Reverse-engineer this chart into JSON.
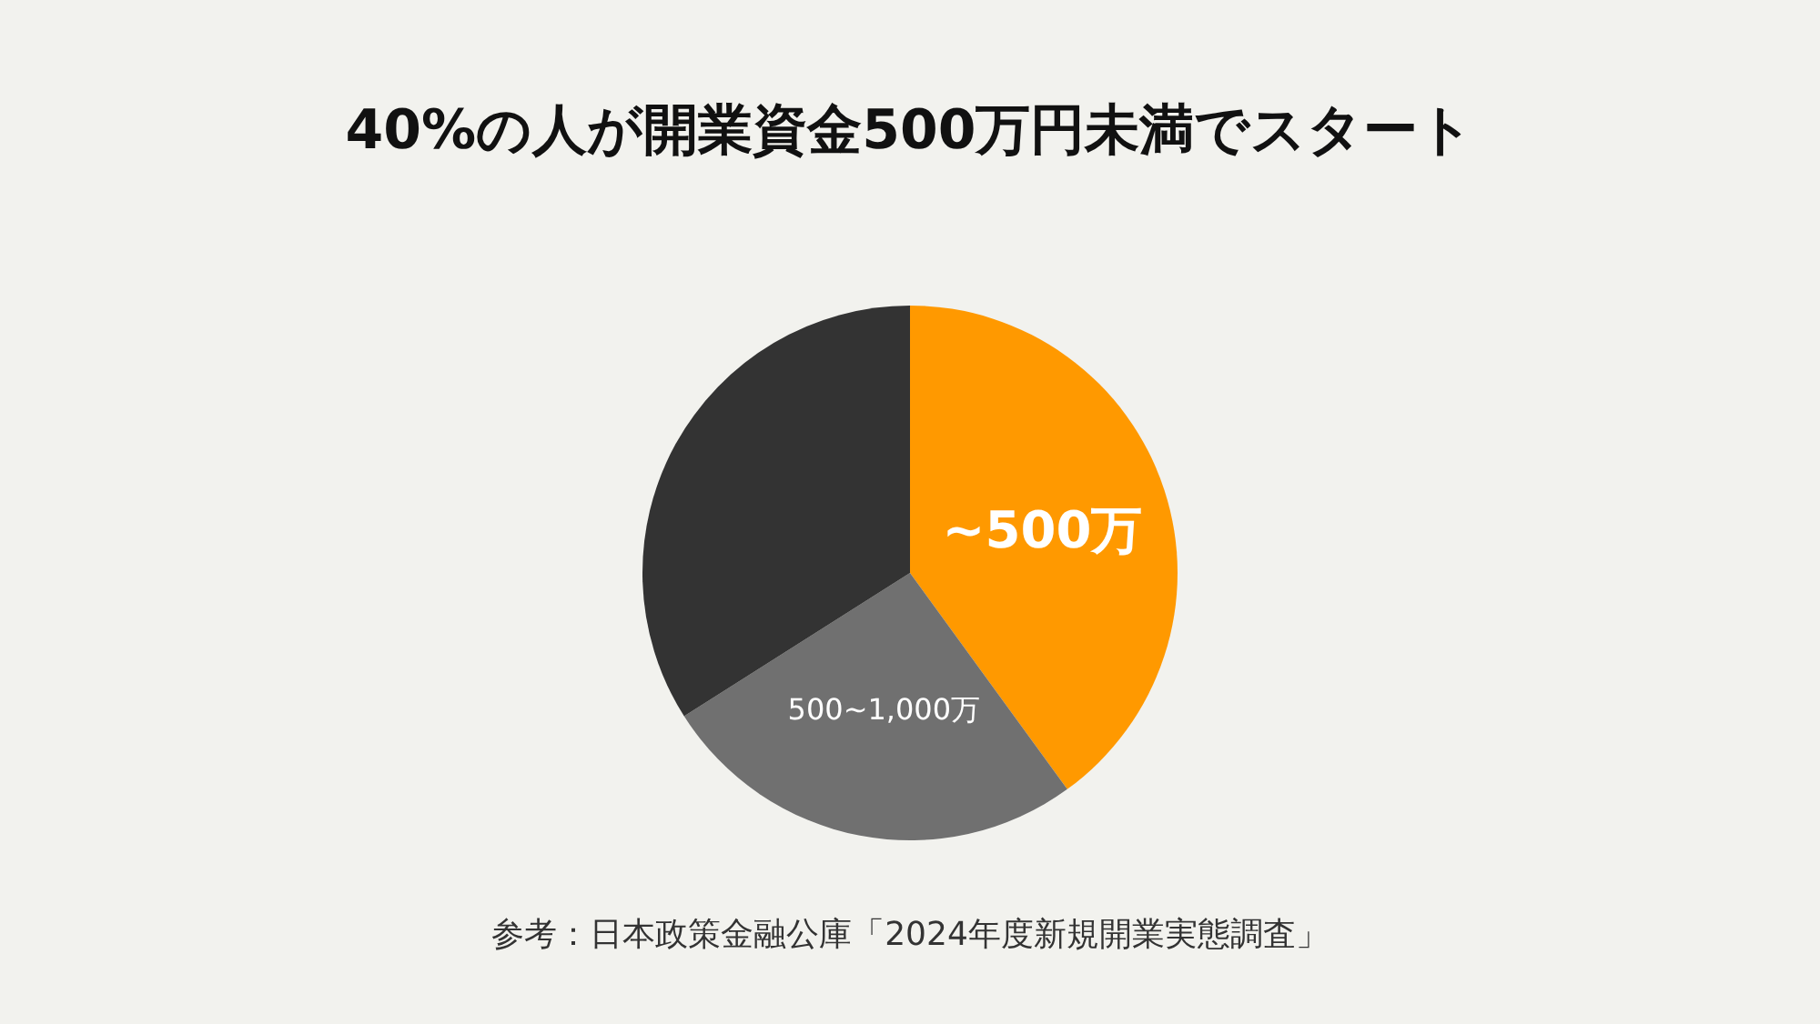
{
  "chart_data": {
    "type": "pie",
    "title": "40%の人が開業資金500万円未満でスタート",
    "categories": [
      "~500万",
      "500~1,000万",
      null
    ],
    "values": [
      40,
      26,
      34
    ],
    "colors": [
      "#ff9900",
      "#707070",
      "#333333"
    ],
    "annotations": [
      "参考：日本政策金融公庫「2024年度新規開業実態調査」"
    ],
    "legend": false
  }
}
